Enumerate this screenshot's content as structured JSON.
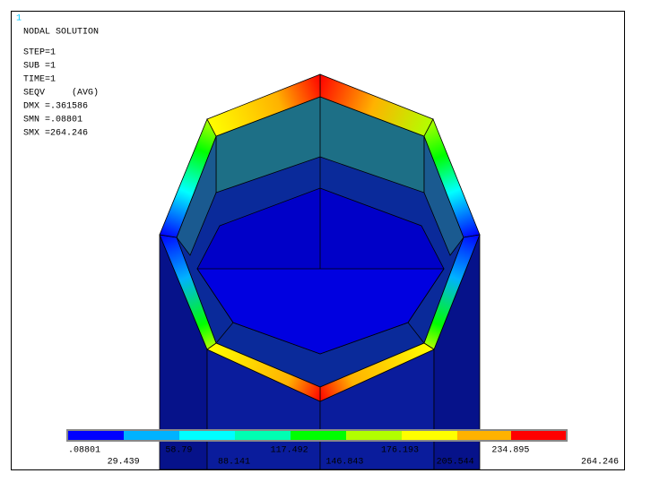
{
  "window_number": "1",
  "title": "NODAL SOLUTION",
  "info": [
    "STEP=1",
    "SUB =1",
    "TIME=1",
    "SEQV     (AVG)",
    "DMX =.361586",
    "SMN =.08801",
    "SMX =264.246"
  ],
  "legend": {
    "labels": [
      ".08801",
      "29.439",
      "58.79",
      "88.141",
      "117.492",
      "146.843",
      "176.193",
      "205.544",
      "234.895",
      "264.246"
    ]
  }
}
